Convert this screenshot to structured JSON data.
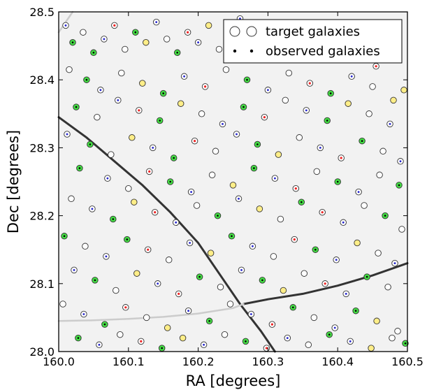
{
  "chart_data": {
    "type": "scatter",
    "xlabel": "RA [degrees]",
    "ylabel": "Dec [degrees]",
    "xlim": [
      160.0,
      160.5
    ],
    "ylim": [
      28.0,
      28.5
    ],
    "xticks": [
      "160.0",
      "160.1",
      "160.2",
      "160.3",
      "160.4",
      "160.5"
    ],
    "yticks": [
      "28.0",
      "28.1",
      "28.2",
      "28.3",
      "28.4",
      "28.5"
    ],
    "legend": {
      "placement": "top-right",
      "entries": [
        "target galaxies",
        "observed galaxies"
      ]
    },
    "colors": {
      "target_edge": "#333333",
      "observed_dot": "#000000",
      "fill_green": "#44dd44",
      "fill_yellow": "#ffee88",
      "fill_blue_center": "#2222cc",
      "fill_red_center": "#ee2222",
      "boundary_line": "#333333",
      "faint_line": "#cccccc",
      "background": "#f2f2f2"
    },
    "series": [
      {
        "name": "target galaxies",
        "x": [
          160.01,
          160.02,
          160.035,
          160.05,
          160.065,
          160.08,
          160.095,
          160.11,
          160.125,
          160.14,
          160.155,
          160.17,
          160.185,
          160.2,
          160.215,
          160.23,
          160.245,
          160.26,
          160.275,
          160.29,
          160.305,
          160.32,
          160.335,
          160.35,
          160.365,
          160.38,
          160.395,
          160.41,
          160.425,
          160.44,
          160.455,
          160.47,
          160.485,
          160.495,
          160.015,
          160.04,
          160.06,
          160.09,
          160.12,
          160.15,
          160.18,
          160.21,
          160.24,
          160.27,
          160.3,
          160.33,
          160.36,
          160.39,
          160.42,
          160.45,
          160.48,
          160.025,
          160.055,
          160.085,
          160.115,
          160.145,
          160.175,
          160.205,
          160.235,
          160.265,
          160.295,
          160.325,
          160.355,
          160.385,
          160.415,
          160.445,
          160.475,
          160.012,
          160.045,
          160.075,
          160.105,
          160.135,
          160.165,
          160.195,
          160.225,
          160.255,
          160.285,
          160.315,
          160.345,
          160.375,
          160.405,
          160.435,
          160.465,
          160.49,
          160.03,
          160.07,
          160.1,
          160.13,
          160.16,
          160.19,
          160.22,
          160.25,
          160.28,
          160.31,
          160.34,
          160.37,
          160.4,
          160.43,
          160.46,
          160.488,
          160.018,
          160.048,
          160.078,
          160.108,
          160.138,
          160.168,
          160.198,
          160.228,
          160.258,
          160.288,
          160.318,
          160.348,
          160.378,
          160.408,
          160.438,
          160.468,
          160.492,
          160.008,
          160.038,
          160.068,
          160.098,
          160.128,
          160.158,
          160.188,
          160.218,
          160.248,
          160.278,
          160.308,
          160.338,
          160.368,
          160.398,
          160.428,
          160.458,
          160.482,
          160.022,
          160.052,
          160.082,
          160.112,
          160.142,
          160.172,
          160.202,
          160.232,
          160.262,
          160.292,
          160.322,
          160.352,
          160.382,
          160.412,
          160.442,
          160.472,
          160.006,
          160.036,
          160.066,
          160.096,
          160.126,
          160.156,
          160.186,
          160.216,
          160.246,
          160.276,
          160.306,
          160.336,
          160.366,
          160.396,
          160.426,
          160.456,
          160.486,
          160.028,
          160.058,
          160.088,
          160.118,
          160.148,
          160.178,
          160.208,
          160.238,
          160.268,
          160.298,
          160.328,
          160.358,
          160.388,
          160.418,
          160.448,
          160.478,
          160.497
        ],
        "y": [
          28.48,
          28.455,
          28.47,
          28.44,
          28.46,
          28.48,
          28.445,
          28.47,
          28.455,
          28.485,
          28.46,
          28.44,
          28.47,
          28.455,
          28.48,
          28.445,
          28.465,
          28.49,
          28.47,
          28.455,
          28.43,
          28.46,
          28.445,
          28.47,
          28.455,
          28.48,
          28.435,
          28.46,
          28.445,
          28.47,
          28.42,
          28.455,
          28.44,
          28.385,
          28.415,
          28.4,
          28.385,
          28.41,
          28.395,
          28.38,
          28.405,
          28.39,
          28.415,
          28.4,
          28.385,
          28.41,
          28.395,
          28.38,
          28.405,
          28.39,
          28.37,
          28.36,
          28.345,
          28.37,
          28.355,
          28.34,
          28.365,
          28.35,
          28.335,
          28.36,
          28.345,
          28.37,
          28.355,
          28.34,
          28.365,
          28.35,
          28.335,
          28.32,
          28.305,
          28.29,
          28.315,
          28.3,
          28.285,
          28.31,
          28.295,
          28.32,
          28.305,
          28.29,
          28.315,
          28.3,
          28.285,
          28.31,
          28.295,
          28.28,
          28.27,
          28.255,
          28.24,
          28.265,
          28.25,
          28.235,
          28.26,
          28.245,
          28.27,
          28.255,
          28.24,
          28.265,
          28.25,
          28.235,
          28.26,
          28.245,
          28.225,
          28.21,
          28.195,
          28.22,
          28.205,
          28.19,
          28.215,
          28.2,
          28.225,
          28.21,
          28.195,
          28.22,
          28.205,
          28.19,
          28.215,
          28.2,
          28.18,
          28.17,
          28.155,
          28.14,
          28.165,
          28.15,
          28.135,
          28.16,
          28.145,
          28.17,
          28.155,
          28.14,
          28.165,
          28.15,
          28.135,
          28.16,
          28.145,
          28.13,
          28.12,
          28.105,
          28.09,
          28.115,
          28.1,
          28.085,
          28.11,
          28.095,
          28.12,
          28.105,
          28.09,
          28.115,
          28.1,
          28.085,
          28.11,
          28.095,
          28.07,
          28.055,
          28.04,
          28.065,
          28.05,
          28.035,
          28.06,
          28.045,
          28.07,
          28.055,
          28.04,
          28.065,
          28.05,
          28.035,
          28.06,
          28.045,
          28.03,
          28.02,
          28.01,
          28.025,
          28.015,
          28.005,
          28.02,
          28.01,
          28.025,
          28.015,
          28.005,
          28.02,
          28.01,
          28.025,
          28.015,
          28.005,
          28.02,
          28.012
        ],
        "kind": [
          "blue",
          "green",
          "white",
          "green",
          "blue",
          "red",
          "white",
          "green",
          "yellow",
          "blue",
          "white",
          "green",
          "red",
          "blue",
          "yellow",
          "white",
          "green",
          "blue",
          "red",
          "white",
          "blue",
          "green",
          "yellow",
          "white",
          "blue",
          "red",
          "green",
          "white",
          "blue",
          "green",
          "red",
          "white",
          "blue",
          "yellow",
          "white",
          "green",
          "blue",
          "white",
          "yellow",
          "green",
          "blue",
          "red",
          "white",
          "green",
          "blue",
          "white",
          "red",
          "green",
          "blue",
          "white",
          "yellow",
          "green",
          "white",
          "blue",
          "red",
          "green",
          "yellow",
          "white",
          "blue",
          "green",
          "red",
          "white",
          "blue",
          "green",
          "yellow",
          "white",
          "blue",
          "blue",
          "green",
          "white",
          "yellow",
          "blue",
          "green",
          "red",
          "white",
          "blue",
          "green",
          "yellow",
          "white",
          "blue",
          "red",
          "green",
          "white",
          "blue",
          "green",
          "blue",
          "white",
          "red",
          "green",
          "blue",
          "white",
          "yellow",
          "green",
          "blue",
          "red",
          "white",
          "green",
          "blue",
          "white",
          "green",
          "white",
          "blue",
          "green",
          "yellow",
          "red",
          "blue",
          "white",
          "green",
          "blue",
          "yellow",
          "white",
          "green",
          "red",
          "blue",
          "white",
          "green",
          "white",
          "green",
          "white",
          "blue",
          "green",
          "red",
          "white",
          "blue",
          "yellow",
          "green",
          "blue",
          "white",
          "red",
          "green",
          "blue",
          "yellow",
          "white",
          "blue",
          "blue",
          "green",
          "white",
          "yellow",
          "blue",
          "red",
          "green",
          "white",
          "blue",
          "green",
          "yellow",
          "white",
          "red",
          "blue",
          "green",
          "white",
          "white",
          "blue",
          "green",
          "red",
          "white",
          "yellow",
          "blue",
          "green",
          "white",
          "blue",
          "red",
          "green",
          "white",
          "blue",
          "green",
          "yellow",
          "white",
          "green",
          "blue",
          "white",
          "red",
          "green",
          "yellow",
          "blue",
          "white",
          "green",
          "red",
          "blue",
          "white",
          "green",
          "blue",
          "yellow",
          "white",
          "green"
        ]
      }
    ],
    "lines": [
      {
        "name": "survey boundary 1",
        "style": "dark",
        "x": [
          160.0,
          160.04,
          160.08,
          160.12,
          160.16,
          160.2,
          160.23,
          160.26,
          160.29,
          160.31
        ],
        "y": [
          28.345,
          28.315,
          28.28,
          28.245,
          28.205,
          28.16,
          28.115,
          28.07,
          28.03,
          28.0
        ]
      },
      {
        "name": "survey boundary 2",
        "style": "dark",
        "x": [
          160.265,
          160.3,
          160.35,
          160.4,
          160.45,
          160.5
        ],
        "y": [
          28.07,
          28.077,
          28.085,
          28.097,
          28.112,
          28.13
        ]
      },
      {
        "name": "faint boundary",
        "style": "faint",
        "x": [
          160.0,
          160.05,
          160.1,
          160.15,
          160.2,
          160.25,
          160.265
        ],
        "y": [
          28.045,
          28.046,
          28.048,
          28.051,
          28.056,
          28.064,
          28.07
        ]
      },
      {
        "name": "faint arc top",
        "style": "faint",
        "x": [
          160.0,
          160.01,
          160.02
        ],
        "y": [
          28.47,
          28.485,
          28.5
        ]
      }
    ]
  }
}
